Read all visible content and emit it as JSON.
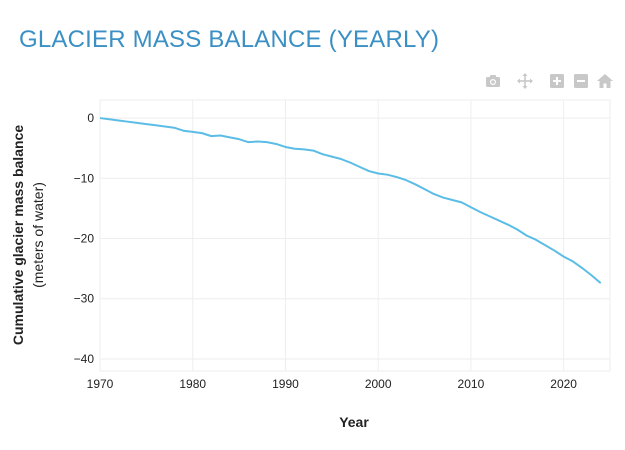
{
  "page": {
    "title": "GLACIER MASS BALANCE (YEARLY)"
  },
  "toolbar": {
    "icons": [
      "camera-icon",
      "pan-icon",
      "zoom-in-icon",
      "zoom-out-icon",
      "home-icon"
    ]
  },
  "colors": {
    "title": "#3a8fc4",
    "line": "#5bbde6",
    "grid": "#eeeeee",
    "icon": "#c8c8c8"
  },
  "chart_data": {
    "type": "line",
    "xlabel": "Year",
    "ylabel": "Cumulative glacier mass balance",
    "ylabel_sub": "(meters of water)",
    "xlim": [
      1970,
      2025
    ],
    "ylim": [
      -42,
      3
    ],
    "xticks": [
      1970,
      1980,
      1990,
      2000,
      2010,
      2020
    ],
    "yticks": [
      0,
      -10,
      -20,
      -30,
      -40
    ],
    "grid": true,
    "series": [
      {
        "x": [
          1970,
          1971,
          1972,
          1973,
          1974,
          1975,
          1976,
          1977,
          1978,
          1979,
          1980,
          1981,
          1982,
          1983,
          1984,
          1985,
          1986,
          1987,
          1988,
          1989,
          1990,
          1991,
          1992,
          1993,
          1994,
          1995,
          1996,
          1997,
          1998,
          1999,
          2000,
          2001,
          2002,
          2003,
          2004,
          2005,
          2006,
          2007,
          2008,
          2009,
          2010,
          2011,
          2012,
          2013,
          2014,
          2015,
          2016,
          2017,
          2018,
          2019,
          2020,
          2021,
          2022,
          2023,
          2024
        ],
        "y": [
          0,
          -0.2,
          -0.4,
          -0.6,
          -0.8,
          -1.0,
          -1.2,
          -1.4,
          -1.6,
          -2.1,
          -2.3,
          -2.5,
          -3.0,
          -2.9,
          -3.2,
          -3.5,
          -4.0,
          -3.9,
          -4.0,
          -4.3,
          -4.8,
          -5.1,
          -5.2,
          -5.4,
          -6.0,
          -6.4,
          -6.8,
          -7.4,
          -8.1,
          -8.8,
          -9.2,
          -9.4,
          -9.8,
          -10.3,
          -11.0,
          -11.8,
          -12.6,
          -13.2,
          -13.6,
          -14.0,
          -14.8,
          -15.6,
          -16.3,
          -17.0,
          -17.7,
          -18.5,
          -19.5,
          -20.2,
          -21.1,
          -22.0,
          -23.0,
          -23.8,
          -24.9,
          -26.1,
          -27.4
        ]
      }
    ]
  }
}
